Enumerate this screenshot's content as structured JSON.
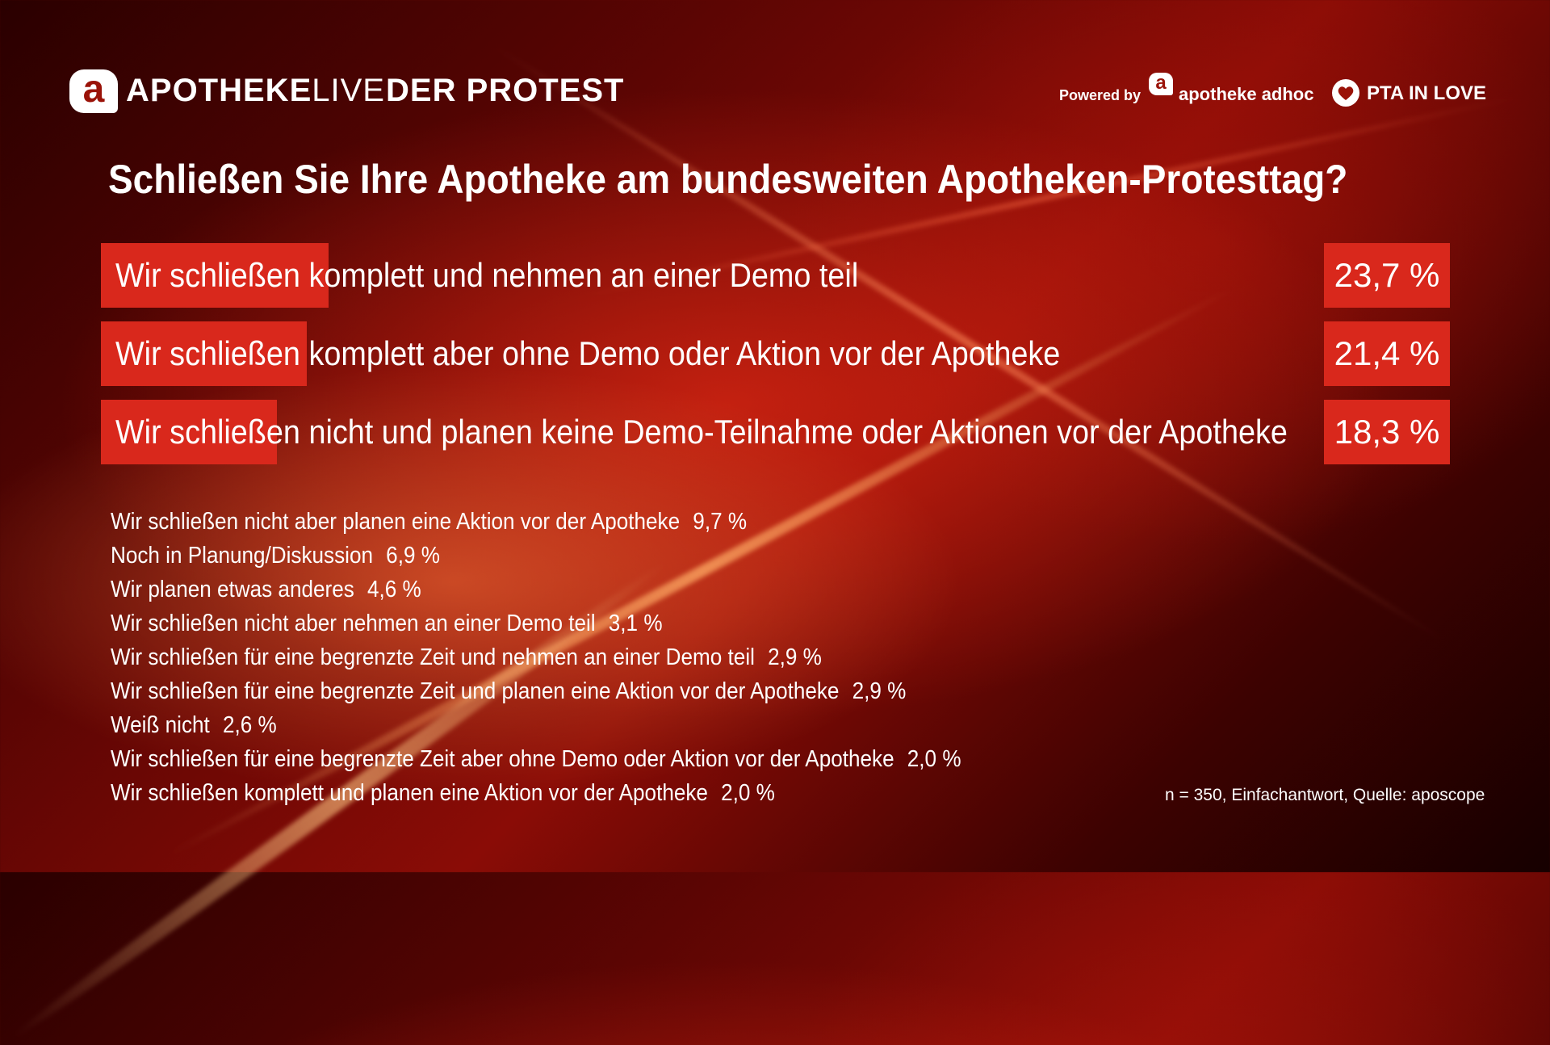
{
  "header": {
    "logo_letter": "a",
    "brand_bold": "APOTHEKE",
    "brand_light": "LIVE",
    "protest": "DER PROTEST",
    "powered_by": "Powered by",
    "adhoc_letter": "a",
    "adhoc": "apotheke adhoc",
    "pta": "PTA IN LOVE"
  },
  "colors": {
    "accent": "#d9281c",
    "background_dark": "#2a0000",
    "text": "#ffffff"
  },
  "chart_data": {
    "type": "bar",
    "title": "Schließen Sie Ihre Apotheke am bundesweiten Apotheken-Protesttag?",
    "unit": "%",
    "xlim": [
      0,
      100
    ],
    "top_items": [
      {
        "label": "Wir schließen komplett und nehmen an einer Demo teil",
        "value": 23.7,
        "value_label": "23,7 %"
      },
      {
        "label": "Wir schließen komplett aber ohne Demo oder Aktion vor der Apotheke",
        "value": 21.4,
        "value_label": "21,4 %"
      },
      {
        "label": "Wir schließen nicht und planen keine Demo-Teilnahme oder Aktionen vor der Apotheke",
        "value": 18.3,
        "value_label": "18,3 %"
      }
    ],
    "other_items": [
      {
        "label": "Wir schließen nicht aber planen eine Aktion vor der Apotheke",
        "value": 9.7,
        "value_label": "9,7 %"
      },
      {
        "label": "Noch in Planung/Diskussion",
        "value": 6.9,
        "value_label": "6,9 %"
      },
      {
        "label": "Wir planen etwas anderes",
        "value": 4.6,
        "value_label": "4,6 %"
      },
      {
        "label": "Wir schließen nicht aber nehmen an einer Demo teil",
        "value": 3.1,
        "value_label": "3,1 %"
      },
      {
        "label": "Wir schließen für eine begrenzte Zeit und nehmen an einer Demo teil",
        "value": 2.9,
        "value_label": "2,9 %"
      },
      {
        "label": "Wir schließen für eine begrenzte Zeit und planen eine Aktion vor der Apotheke",
        "value": 2.9,
        "value_label": "2,9 %"
      },
      {
        "label": "Weiß nicht",
        "value": 2.6,
        "value_label": "2,6 %"
      },
      {
        "label": "Wir schließen für eine begrenzte Zeit aber ohne Demo oder Aktion vor der Apotheke",
        "value": 2.0,
        "value_label": "2,0 %"
      },
      {
        "label": "Wir schließen komplett und planen eine Aktion vor der Apotheke",
        "value": 2.0,
        "value_label": "2,0 %"
      }
    ],
    "footnote": "n = 350, Einfachantwort, Quelle: aposcope"
  }
}
